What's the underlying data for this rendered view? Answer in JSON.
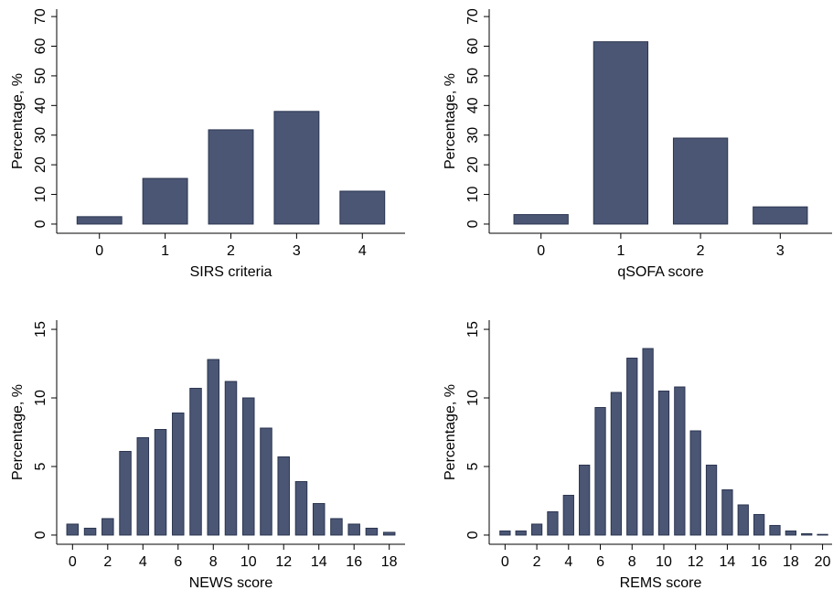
{
  "chart_data": [
    {
      "type": "bar",
      "xlabel": "SIRS criteria",
      "ylabel": "Percentage, %",
      "color": "#4a5674",
      "categories": [
        "0",
        "1",
        "2",
        "3",
        "4"
      ],
      "values": [
        2.5,
        15.4,
        31.8,
        38,
        11.1
      ],
      "ylim": [
        -3.1,
        72.5
      ],
      "yticks": [
        0,
        10,
        20,
        30,
        40,
        50,
        60,
        70
      ]
    },
    {
      "type": "bar",
      "xlabel": "qSOFA score",
      "ylabel": "Percentage, %",
      "color": "#4a5674",
      "categories": [
        "0",
        "1",
        "2",
        "3"
      ],
      "values": [
        3.2,
        61.5,
        29,
        5.8
      ],
      "ylim": [
        -3.1,
        72.5
      ],
      "yticks": [
        0,
        10,
        20,
        30,
        40,
        50,
        60,
        70
      ]
    },
    {
      "type": "histbar",
      "xlabel": "NEWS score",
      "ylabel": "Percentage, %",
      "color": "#4a5674",
      "x": [
        0,
        1,
        2,
        3,
        4,
        5,
        6,
        7,
        8,
        9,
        10,
        11,
        12,
        13,
        14,
        15,
        16,
        17,
        18
      ],
      "values": [
        0.8,
        0.5,
        1.2,
        6.1,
        7.1,
        7.7,
        8.9,
        10.7,
        12.8,
        11.2,
        10.0,
        7.8,
        5.7,
        3.9,
        2.3,
        1.2,
        0.8,
        0.5,
        0.2
      ],
      "xlim": [
        -0.9,
        18.9
      ],
      "xticks": [
        0,
        2,
        4,
        6,
        8,
        10,
        12,
        14,
        16,
        18
      ],
      "ylim": [
        -0.67,
        15.67
      ],
      "yticks": [
        0,
        5,
        10,
        15
      ]
    },
    {
      "type": "histbar",
      "xlabel": "REMS score",
      "ylabel": "Percentage, %",
      "color": "#4a5674",
      "x": [
        0,
        1,
        2,
        3,
        4,
        5,
        6,
        7,
        8,
        9,
        10,
        11,
        12,
        13,
        14,
        15,
        16,
        17,
        18,
        19,
        20
      ],
      "values": [
        0.3,
        0.3,
        0.8,
        1.7,
        2.9,
        5.1,
        9.3,
        10.4,
        12.9,
        13.6,
        10.5,
        10.8,
        7.6,
        5.1,
        3.3,
        2.2,
        1.5,
        0.7,
        0.3,
        0.1,
        0.05
      ],
      "xlim": [
        -1,
        20.6
      ],
      "xticks": [
        0,
        2,
        4,
        6,
        8,
        10,
        12,
        14,
        16,
        18,
        20
      ],
      "ylim": [
        -0.67,
        15.67
      ],
      "yticks": [
        0,
        5,
        10,
        15
      ]
    }
  ]
}
